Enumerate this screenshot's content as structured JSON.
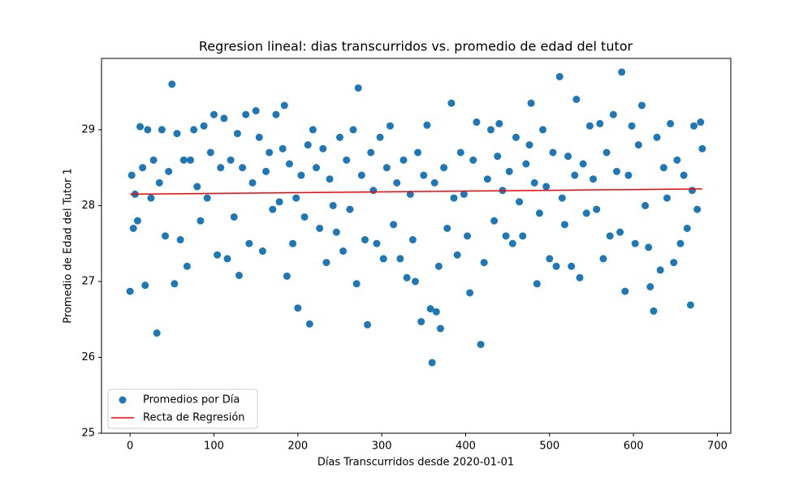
{
  "chart_data": {
    "type": "scatter",
    "title": "Regresion lineal: dias transcurridos vs. promedio de edad del tutor",
    "x_label": "Días Transcurridos desde 2020-01-01",
    "y_label": "Promedio de Edad del Tutor 1",
    "xlim": [
      -34,
      716
    ],
    "ylim": [
      25,
      29.94
    ],
    "xticks": [
      0,
      100,
      200,
      300,
      400,
      500,
      600,
      700
    ],
    "yticks": [
      25,
      26,
      27,
      28,
      29
    ],
    "grid": false,
    "legend": "lower left",
    "series": [
      {
        "name": "Promedios por Día",
        "type": "scatter",
        "color": "#1f77b4",
        "x": [
          0,
          2,
          4,
          6,
          9,
          12,
          15,
          18,
          21,
          25,
          28,
          32,
          35,
          38,
          42,
          46,
          50,
          53,
          56,
          60,
          64,
          68,
          72,
          76,
          80,
          84,
          88,
          92,
          96,
          100,
          104,
          108,
          112,
          116,
          120,
          124,
          128,
          130,
          134,
          138,
          142,
          146,
          150,
          154,
          158,
          162,
          166,
          170,
          174,
          178,
          182,
          184,
          187,
          190,
          194,
          198,
          200,
          204,
          208,
          212,
          214,
          218,
          222,
          226,
          230,
          234,
          238,
          242,
          246,
          250,
          254,
          258,
          262,
          266,
          270,
          272,
          276,
          280,
          283,
          287,
          290,
          294,
          298,
          302,
          306,
          310,
          314,
          318,
          322,
          326,
          330,
          334,
          337,
          340,
          343,
          347,
          350,
          354,
          358,
          360,
          363,
          365,
          368,
          370,
          374,
          378,
          383,
          386,
          390,
          394,
          398,
          402,
          405,
          409,
          413,
          418,
          422,
          426,
          430,
          434,
          438,
          440,
          444,
          448,
          452,
          456,
          460,
          464,
          468,
          472,
          476,
          478,
          482,
          485,
          488,
          492,
          496,
          500,
          504,
          508,
          512,
          515,
          518,
          522,
          526,
          530,
          532,
          536,
          540,
          544,
          548,
          552,
          556,
          560,
          564,
          568,
          572,
          576,
          580,
          584,
          586,
          590,
          594,
          598,
          602,
          606,
          610,
          614,
          618,
          620,
          624,
          628,
          632,
          636,
          640,
          644,
          648,
          652,
          656,
          660,
          664,
          668,
          670,
          672,
          676,
          680,
          682
        ],
        "values": [
          26.87,
          28.4,
          27.7,
          28.15,
          27.8,
          29.04,
          28.5,
          26.95,
          29.0,
          28.1,
          28.6,
          26.32,
          28.3,
          29.0,
          27.6,
          28.45,
          29.6,
          26.97,
          28.95,
          27.55,
          28.6,
          27.2,
          28.6,
          29.0,
          28.25,
          27.8,
          29.05,
          28.1,
          28.7,
          29.2,
          27.35,
          28.5,
          29.15,
          27.3,
          28.6,
          27.85,
          28.95,
          27.08,
          28.5,
          29.2,
          27.5,
          28.3,
          29.25,
          28.9,
          27.4,
          28.45,
          28.7,
          27.95,
          29.2,
          28.05,
          28.75,
          29.32,
          27.07,
          28.55,
          27.5,
          28.1,
          26.65,
          28.4,
          27.85,
          28.8,
          26.44,
          29.0,
          28.5,
          27.7,
          28.75,
          27.25,
          28.35,
          28.0,
          27.65,
          28.9,
          27.4,
          28.6,
          27.95,
          29.0,
          26.97,
          29.55,
          28.4,
          27.55,
          26.43,
          28.7,
          28.2,
          27.5,
          28.9,
          27.3,
          28.5,
          29.05,
          27.75,
          28.3,
          27.3,
          28.6,
          27.05,
          28.15,
          27.55,
          27.0,
          28.7,
          26.47,
          28.4,
          29.06,
          26.64,
          25.93,
          28.3,
          26.6,
          27.2,
          26.38,
          28.5,
          27.7,
          29.35,
          28.1,
          27.35,
          28.7,
          28.15,
          27.6,
          26.85,
          28.6,
          29.1,
          26.17,
          27.25,
          28.35,
          29.0,
          27.8,
          28.65,
          29.08,
          28.2,
          27.6,
          28.45,
          27.5,
          28.9,
          28.05,
          27.6,
          28.55,
          28.8,
          29.35,
          28.3,
          26.97,
          27.9,
          29.0,
          28.25,
          27.3,
          28.7,
          27.2,
          29.7,
          28.1,
          27.75,
          28.65,
          27.2,
          28.4,
          29.4,
          27.05,
          28.55,
          27.9,
          29.05,
          28.35,
          27.95,
          29.08,
          27.3,
          28.7,
          27.6,
          29.2,
          28.45,
          27.65,
          29.76,
          26.87,
          28.4,
          29.05,
          27.5,
          28.8,
          29.32,
          28.0,
          27.45,
          26.93,
          26.61,
          28.9,
          27.15,
          28.5,
          28.1,
          29.08,
          27.25,
          28.6,
          27.5,
          28.4,
          27.7,
          26.69,
          28.2,
          29.05,
          27.95,
          29.1,
          28.75
        ]
      },
      {
        "name": "Recta de Regresión",
        "type": "line",
        "color": "#ff0000",
        "x": [
          0,
          682
        ],
        "values": [
          28.15,
          28.22
        ]
      }
    ]
  }
}
